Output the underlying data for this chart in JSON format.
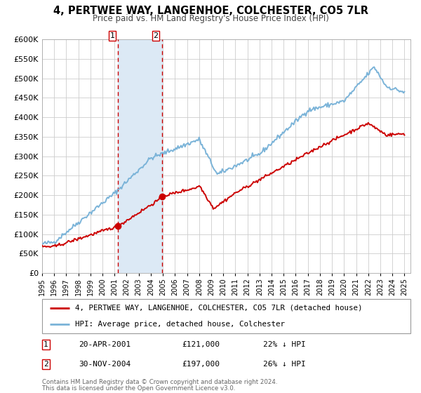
{
  "title": "4, PERTWEE WAY, LANGENHOE, COLCHESTER, CO5 7LR",
  "subtitle": "Price paid vs. HM Land Registry's House Price Index (HPI)",
  "ylim": [
    0,
    600000
  ],
  "yticks": [
    0,
    50000,
    100000,
    150000,
    200000,
    250000,
    300000,
    350000,
    400000,
    450000,
    500000,
    550000,
    600000
  ],
  "xlim_start": 1995.0,
  "xlim_end": 2025.5,
  "hpi_color": "#7ab3d8",
  "price_color": "#cc0000",
  "point1_x": 2001.3,
  "point1_y": 121000,
  "point2_x": 2004.92,
  "point2_y": 197000,
  "shade_x1": 2001.3,
  "shade_x2": 2004.92,
  "shade_color": "#dce9f5",
  "vline_color": "#cc0000",
  "legend_label_red": "4, PERTWEE WAY, LANGENHOE, COLCHESTER, CO5 7LR (detached house)",
  "legend_label_blue": "HPI: Average price, detached house, Colchester",
  "annotation1_date": "20-APR-2001",
  "annotation1_price": "£121,000",
  "annotation1_pct": "22% ↓ HPI",
  "annotation2_date": "30-NOV-2004",
  "annotation2_price": "£197,000",
  "annotation2_pct": "26% ↓ HPI",
  "footnote1": "Contains HM Land Registry data © Crown copyright and database right 2024.",
  "footnote2": "This data is licensed under the Open Government Licence v3.0.",
  "background_color": "#ffffff",
  "grid_color": "#cccccc"
}
